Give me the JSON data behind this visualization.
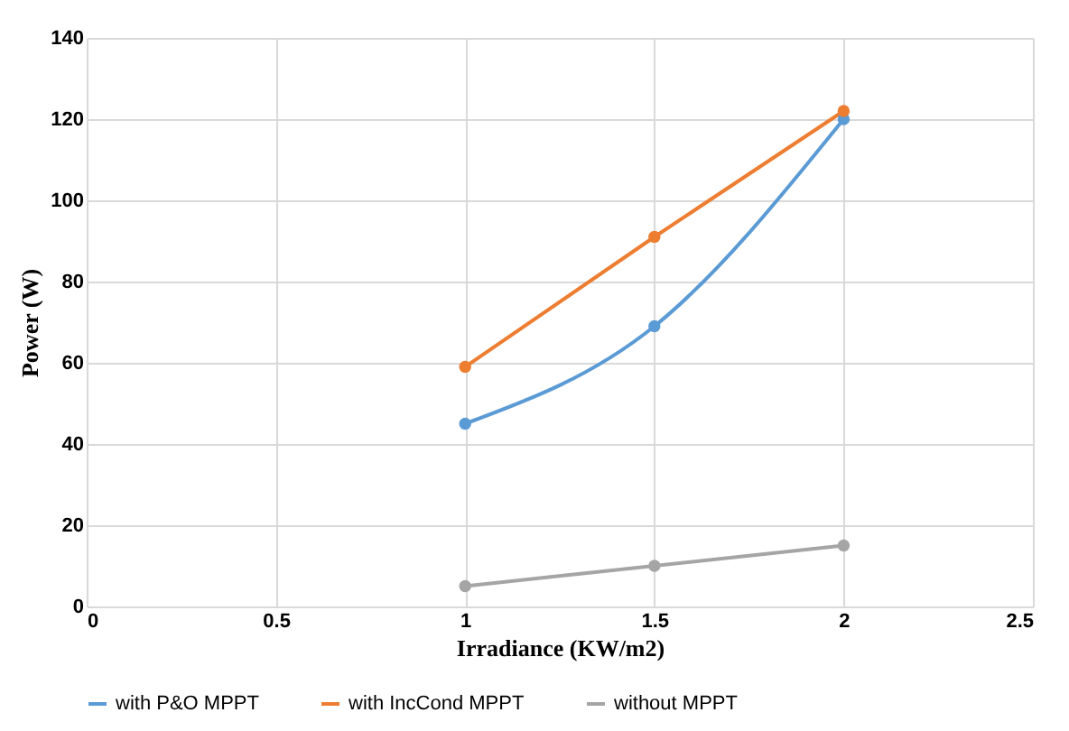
{
  "chart_data": {
    "type": "line",
    "xlabel": "Irradiance (KW/m2)",
    "ylabel": "Power (W)",
    "x": [
      1,
      1.5,
      2
    ],
    "series": [
      {
        "name": "with P&O MPPT",
        "color": "#5b9bd5",
        "values": [
          45,
          69,
          120
        ]
      },
      {
        "name": "with IncCond MPPT",
        "color": "#ed7d31",
        "values": [
          59,
          91,
          122
        ]
      },
      {
        "name": "without MPPT",
        "color": "#a5a5a5",
        "values": [
          5,
          10,
          15
        ]
      }
    ],
    "xlim": [
      0,
      2.5
    ],
    "xticks": [
      0,
      0.5,
      1,
      1.5,
      2,
      2.5
    ],
    "ylim": [
      0,
      140
    ],
    "yticks": [
      0,
      20,
      40,
      60,
      80,
      100,
      120,
      140
    ],
    "grid": true,
    "legend": "bottom",
    "marker": "circle",
    "line_style": "solid"
  }
}
